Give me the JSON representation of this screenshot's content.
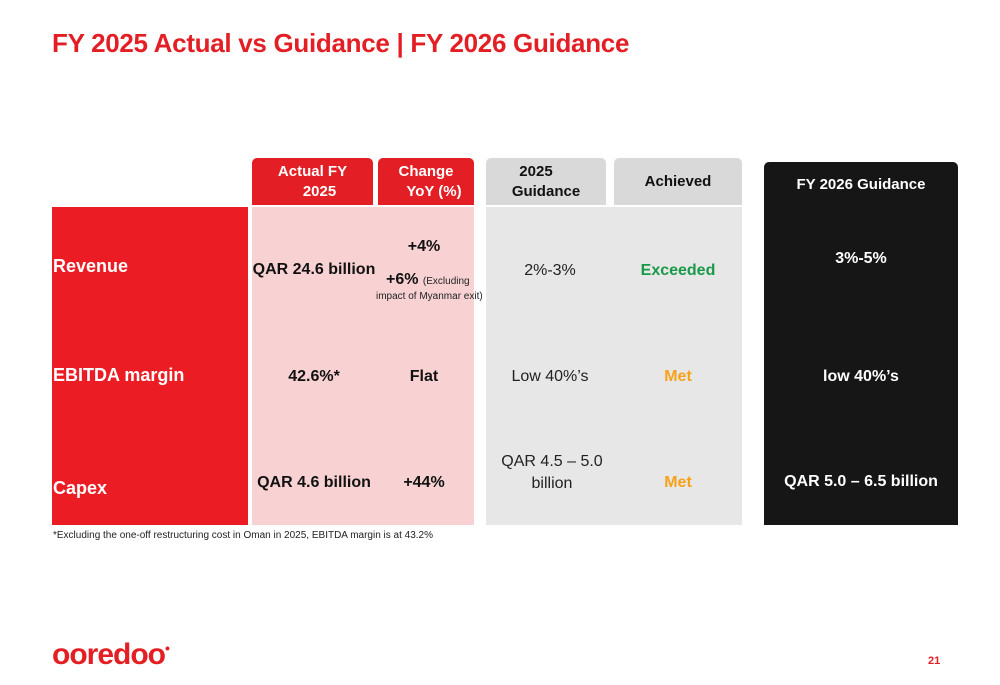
{
  "title": "FY 2025 Actual vs Guidance | FY 2026 Guidance",
  "headers": {
    "actual_line1": "Actual FY",
    "actual_line2": "2025",
    "change_line1": "Change",
    "change_line2": "YoY (%)",
    "guidance_line1": "2025",
    "guidance_line2": "Guidance",
    "achieved": "Achieved",
    "fy2026": "FY 2026 Guidance"
  },
  "rows": [
    {
      "label": "Revenue",
      "actual": "QAR 24.6 billion",
      "change_line1": "+4%",
      "change_line2_main": "+6%",
      "change_line2_note": "(Excluding",
      "change_line3_note": "impact of Myanmar exit)",
      "guidance": "2%-3%",
      "achieved": "Exceeded",
      "fy2026": "3%-5%"
    },
    {
      "label": "EBITDA margin",
      "actual": "42.6%*",
      "change": "Flat",
      "guidance": "Low 40%’s",
      "achieved": "Met",
      "fy2026": "low 40%’s"
    },
    {
      "label": "Capex",
      "actual": "QAR 4.6 billion",
      "change": "+44%",
      "guidance_line1": "QAR 4.5 – 5.0",
      "guidance_line2": "billion",
      "achieved": "Met",
      "fy2026": "QAR 5.0 – 6.5 billion"
    }
  ],
  "footnote": "*Excluding the one-off restructuring cost in Oman in 2025, EBITDA margin is at 43.2%",
  "logo": "ooredoo",
  "page_number": "21",
  "colors": {
    "brand_red": "#e31e24",
    "pink": "#f8d2d3",
    "gray": "#e7e7e7",
    "black": "#161616",
    "exceeded_green": "#1a9a48",
    "met_orange": "#f7a21b"
  }
}
